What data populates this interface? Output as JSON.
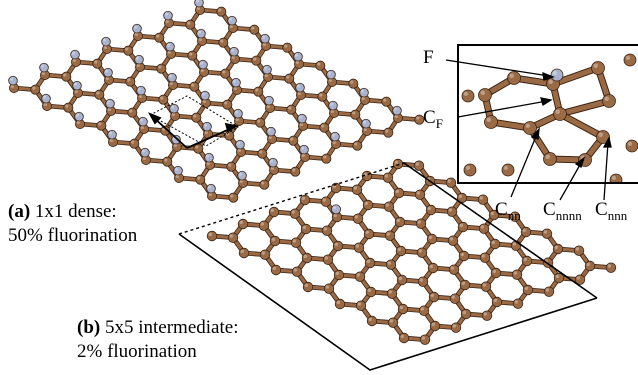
{
  "figure": {
    "colors": {
      "carbon_atom": "#9a6a45",
      "carbon_bond": "#9a6a45",
      "fluorine_atom": "#a9b3cf",
      "outline": "#000000",
      "background": "#ffffff"
    },
    "panel_a": {
      "tag": "(a)",
      "line1": "1x1 dense:",
      "line2": "50% fluorination"
    },
    "panel_b": {
      "tag": "(b)",
      "line1": "5x5 intermediate:",
      "line2": "2% fluorination"
    },
    "inset": {
      "label_f": "F",
      "label_cf_main": "C",
      "label_cf_sub": "F",
      "label_cnn_main": "C",
      "label_cnn_sub": "nn",
      "label_cnnnn_main": "C",
      "label_cnnnn_sub": "nnnn",
      "label_cnnn_main": "C",
      "label_cnnn_sub": "nnn"
    }
  }
}
